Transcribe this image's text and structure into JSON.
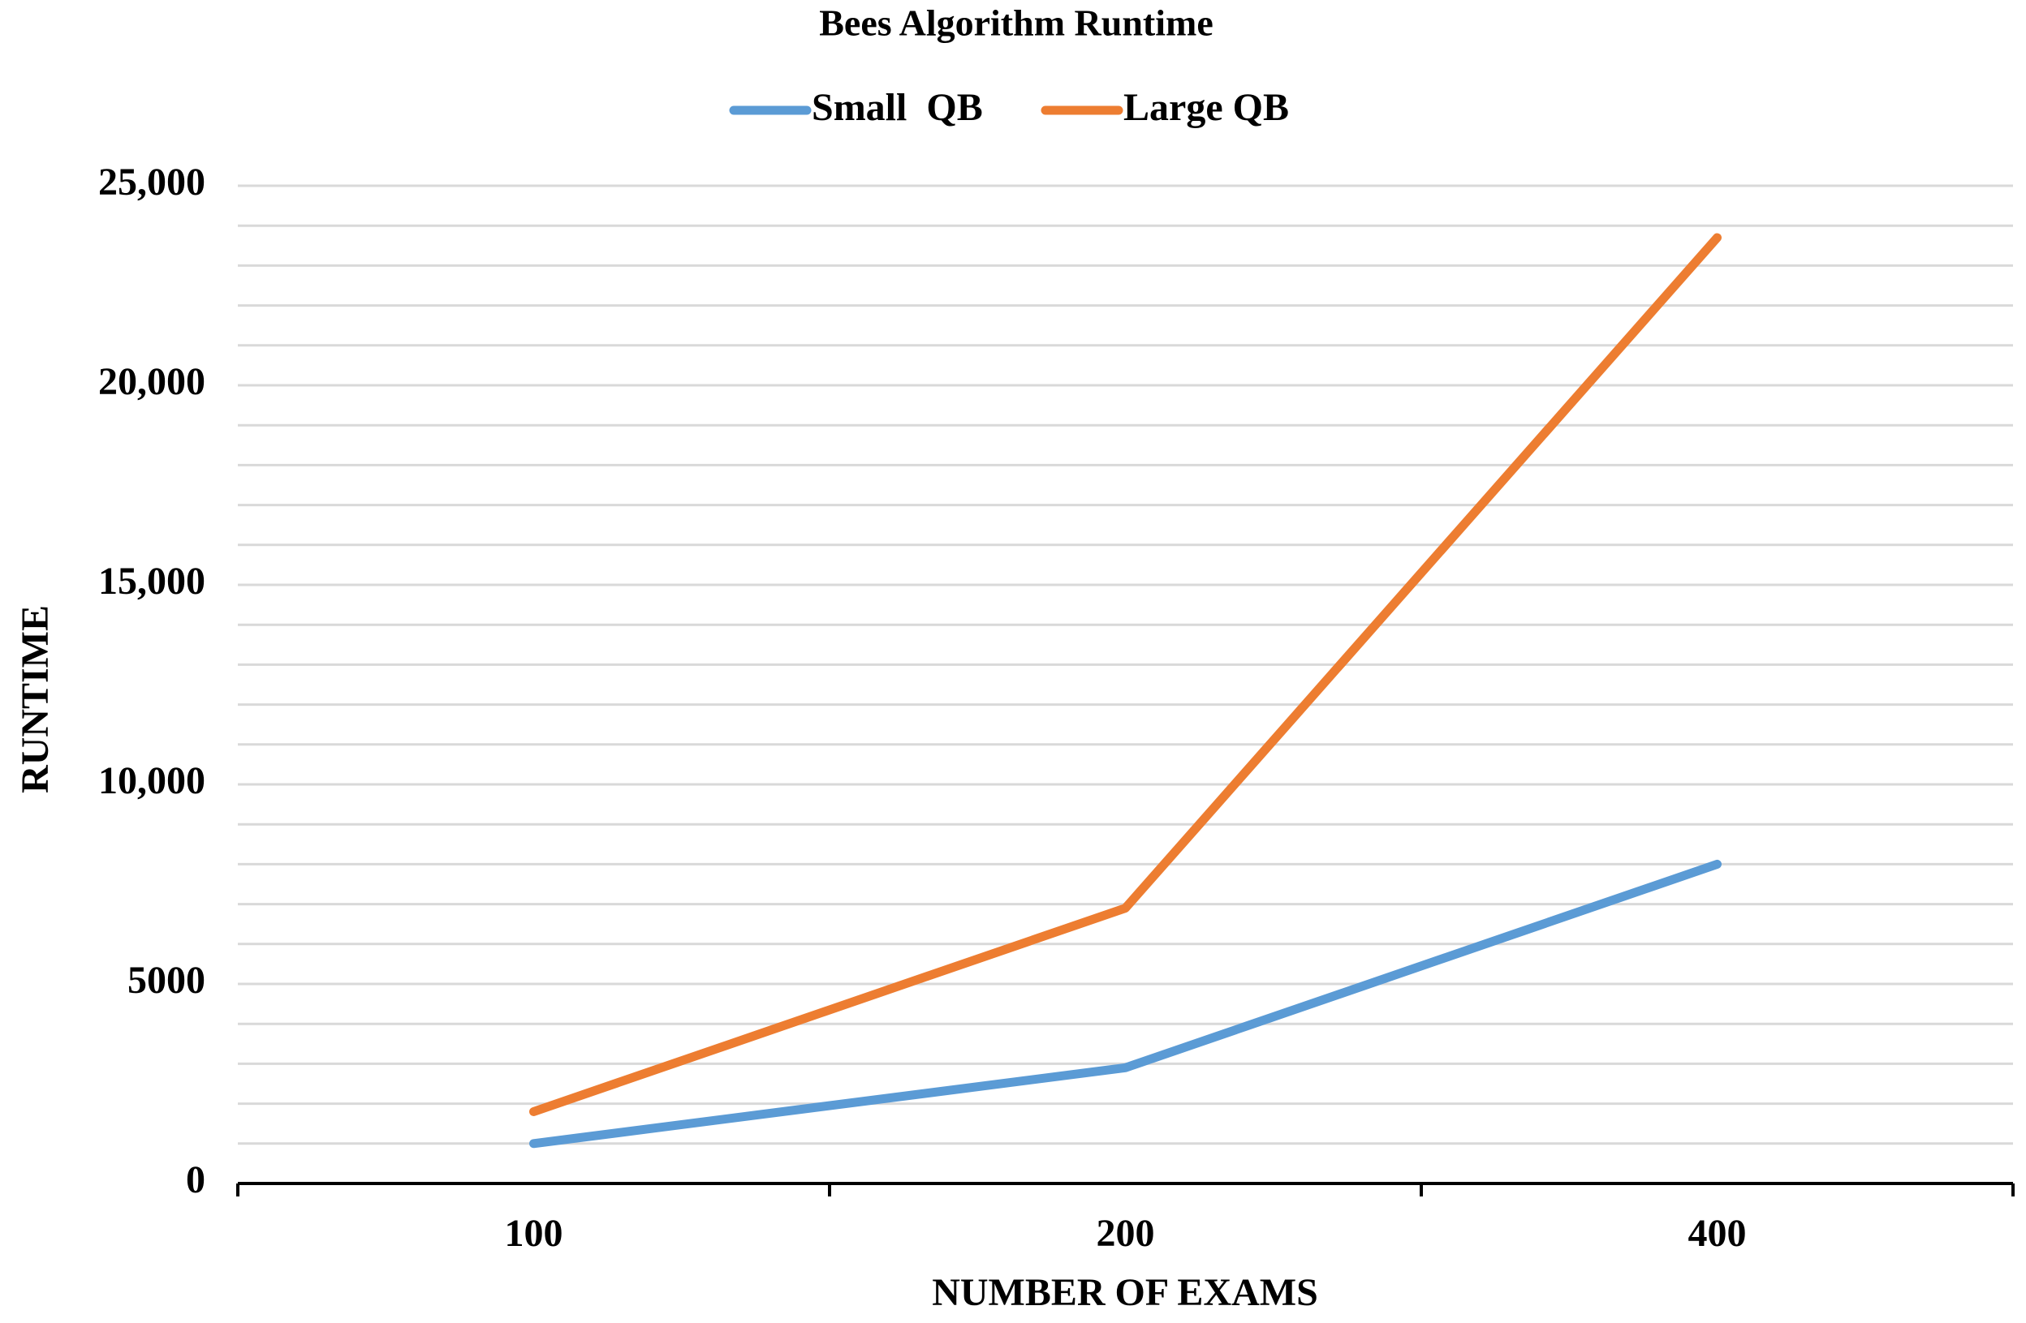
{
  "chart_data": {
    "type": "line",
    "title": "Bees Algorithm Runtime",
    "x_label": "NUMBER OF EXAMS",
    "y_label": "RUNTIME",
    "categories": [
      "100",
      "200",
      "400"
    ],
    "series": [
      {
        "name": "Small  QB",
        "color": "#5b9bd5",
        "values": [
          1000,
          2900,
          8000
        ]
      },
      {
        "name": "Large QB",
        "color": "#ed7d31",
        "values": [
          1800,
          6900,
          23700
        ]
      }
    ],
    "ylim": [
      0,
      25000
    ],
    "yticks": [
      0,
      5000,
      {
        "value": 10000,
        "label": "10,000"
      },
      {
        "value": 15000,
        "label": "15,000"
      },
      {
        "value": 20000,
        "label": "20,000"
      },
      {
        "value": 25000,
        "label": "25,000"
      }
    ],
    "y_minor_ticks": [
      1000,
      2000,
      3000,
      4000,
      6000,
      7000,
      8000,
      9000,
      11000,
      12000,
      13000,
      14000,
      16000,
      17000,
      18000,
      19000,
      21000,
      22000,
      23000,
      24000
    ],
    "grid": true,
    "legend": "top"
  }
}
